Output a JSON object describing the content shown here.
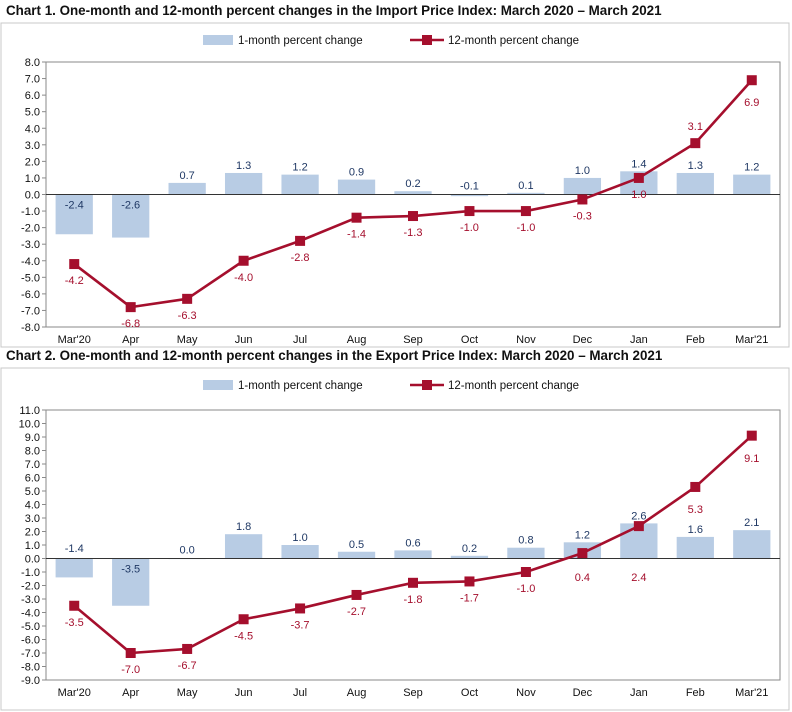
{
  "chart_data": [
    {
      "type": "bar+line",
      "title": "Chart 1. One-month and 12-month percent changes in the Import Price Index: March 2020 – March 2021",
      "categories": [
        "Mar'20",
        "Apr",
        "May",
        "Jun",
        "Jul",
        "Aug",
        "Sep",
        "Oct",
        "Nov",
        "Dec",
        "Jan",
        "Feb",
        "Mar'21"
      ],
      "series": [
        {
          "name": "1-month percent change",
          "kind": "bar",
          "color": "#b8cce4",
          "values": [
            -2.4,
            -2.6,
            0.7,
            1.3,
            1.2,
            0.9,
            0.2,
            -0.1,
            0.1,
            1.0,
            1.4,
            1.3,
            1.2
          ],
          "labels": [
            "-2.4",
            "-2.6",
            "0.7",
            "1.3",
            "1.2",
            "0.9",
            "0.2",
            "-0.1",
            "0.1",
            "1.0",
            "1.4",
            "1.3",
            "1.2"
          ]
        },
        {
          "name": "12-month percent change",
          "kind": "line",
          "color": "#a50f2d",
          "values": [
            -4.2,
            -6.8,
            -6.3,
            -4.0,
            -2.8,
            -1.4,
            -1.3,
            -1.0,
            -1.0,
            -0.3,
            1.0,
            3.1,
            6.9
          ],
          "labels": [
            "-4.2",
            "-6.8",
            "-6.3",
            "-4.0",
            "-2.8",
            "-1.4",
            "-1.3",
            "-1.0",
            "-1.0",
            "-0.3",
            "1.0",
            "3.1",
            "6.9"
          ]
        }
      ],
      "ylim": [
        -8,
        8
      ],
      "ytick_labels": [
        "8.0",
        "7.0",
        "6.0",
        "5.0",
        "4.0",
        "3.0",
        "2.0",
        "1.0",
        "0.0",
        "-1.0",
        "-2.0",
        "-3.0",
        "-4.0",
        "-5.0",
        "-6.0",
        "-7.0",
        "-8.0"
      ],
      "legend": "top-center",
      "grid": false
    },
    {
      "type": "bar+line",
      "title": "Chart 2. One-month and 12-month percent changes in the Export Price Index: March 2020 – March 2021",
      "categories": [
        "Mar'20",
        "Apr",
        "May",
        "Jun",
        "Jul",
        "Aug",
        "Sep",
        "Oct",
        "Nov",
        "Dec",
        "Jan",
        "Feb",
        "Mar'21"
      ],
      "series": [
        {
          "name": "1-month percent change",
          "kind": "bar",
          "color": "#b8cce4",
          "values": [
            -1.4,
            -3.5,
            0.0,
            1.8,
            1.0,
            0.5,
            0.6,
            0.2,
            0.8,
            1.2,
            2.6,
            1.6,
            2.1
          ],
          "labels": [
            "-1.4",
            "-3.5",
            "0.0",
            "1.8",
            "1.0",
            "0.5",
            "0.6",
            "0.2",
            "0.8",
            "1.2",
            "2.6",
            "1.6",
            "2.1"
          ]
        },
        {
          "name": "12-month percent change",
          "kind": "line",
          "color": "#a50f2d",
          "values": [
            -3.5,
            -7.0,
            -6.7,
            -4.5,
            -3.7,
            -2.7,
            -1.8,
            -1.7,
            -1.0,
            0.4,
            2.4,
            5.3,
            9.1
          ],
          "labels": [
            "-3.5",
            "-7.0",
            "-6.7",
            "-4.5",
            "-3.7",
            "-2.7",
            "-1.8",
            "-1.7",
            "-1.0",
            "0.4",
            "2.4",
            "5.3",
            "9.1"
          ]
        }
      ],
      "ylim": [
        -9,
        11
      ],
      "ytick_labels": [
        "11.0",
        "10.0",
        "9.0",
        "8.0",
        "7.0",
        "6.0",
        "5.0",
        "4.0",
        "3.0",
        "2.0",
        "1.0",
        "0.0",
        "-1.0",
        "-2.0",
        "-3.0",
        "-4.0",
        "-5.0",
        "-6.0",
        "-7.0",
        "-8.0",
        "-9.0"
      ],
      "legend": "top-center",
      "grid": false
    }
  ]
}
